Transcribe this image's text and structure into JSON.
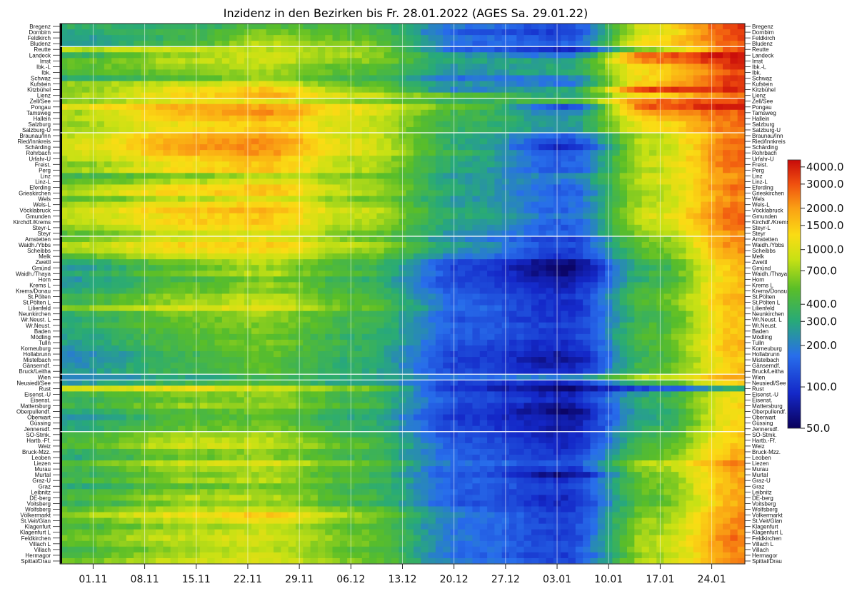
{
  "chart_data": {
    "type": "heatmap",
    "title": "Inzidenz in den Bezirken bis Fr. 28.01.2022 (AGES Sa. 29.01.22)",
    "colorscale": "log",
    "color_range": [
      50,
      4500
    ],
    "rows": [
      "Bregenz",
      "Dornbirn",
      "Feldkirch",
      "Bludenz",
      "Reutte",
      "Landeck",
      "Imst",
      "Ibk.-L",
      "Ibk.",
      "Schwaz",
      "Kufstein",
      "Kitzbühel",
      "Lienz",
      "Zell/See",
      "Pongau",
      "Tamsweg",
      "Hallein",
      "Salzburg",
      "Salzburg-U",
      "Braunau/Inn",
      "Ried/Innkreis",
      "Schärding",
      "Rohrbach",
      "Urfahr-U",
      "Freist.",
      "Perg",
      "Linz",
      "Linz-L",
      "Eferding",
      "Grieskirchen",
      "Wels",
      "Wels-L",
      "Vöcklabruck",
      "Gmunden",
      "Kirchdf./Krems",
      "Steyr-L",
      "Steyr",
      "Amstetten",
      "Waidh./Ybbs",
      "Scheibbs",
      "Melk",
      "Zwettl",
      "Gmünd",
      "Waidh./Thaya",
      "Horn",
      "Krems L",
      "Krems/Donau",
      "St.Pölten",
      "St.Pölten L",
      "Lilienfeld",
      "Neunkirchen",
      "Wr.Neust. L",
      "Wr.Neust.",
      "Baden",
      "Mödling",
      "Tulln",
      "Korneuburg",
      "Hollabrunn",
      "Mistelbach",
      "Gänserndf.",
      "Bruck/Leitha",
      "Wien",
      "Neusiedl/See",
      "Rust",
      "Eisenst.-U",
      "Eisenst.",
      "Mattersburg",
      "Oberpullendf.",
      "Oberwart",
      "Güssing",
      "Jennersdf.",
      "SO-Stmk.",
      "Hartb.-Ff.",
      "Weiz",
      "Bruck-Mzz.",
      "Leoben",
      "Liezen",
      "Murau",
      "Murtal",
      "Graz-U",
      "Graz",
      "Leibnitz",
      "DE-berg",
      "Voitsberg",
      "Wolfsberg",
      "Völkermarkt",
      "St.Veit/Glan",
      "Klagenfurt",
      "Klagenfurt L",
      "Feldkirchen",
      "Villach L",
      "Villach",
      "Hermagor",
      "Spittal/Drau"
    ],
    "x_start": "2021-10-28",
    "x_end": "2022-01-28",
    "x_ticks": [
      "01.11",
      "08.11",
      "15.11",
      "22.11",
      "29.11",
      "06.12",
      "13.12",
      "20.12",
      "27.12",
      "03.01",
      "10.01",
      "17.01",
      "24.01"
    ],
    "colorbar_ticks": [
      {
        "value": 4000,
        "label": "4000.0"
      },
      {
        "value": 3000,
        "label": "3000.0"
      },
      {
        "value": 2000,
        "label": "2000.0"
      },
      {
        "value": 1500,
        "label": "1500.0"
      },
      {
        "value": 1000,
        "label": "1000.0"
      },
      {
        "value": 700,
        "label": "700.0"
      },
      {
        "value": 400,
        "label": "400.0"
      },
      {
        "value": 300,
        "label": "300.0"
      },
      {
        "value": 200,
        "label": "200.0"
      },
      {
        "value": 100,
        "label": "100.0"
      },
      {
        "value": 50,
        "label": "50.0"
      }
    ],
    "region_separators_after_row": [
      "Bludenz",
      "Lienz",
      "Salzburg-U",
      "Steyr",
      "Bruck/Leitha",
      "Wien",
      "Jennersdf.",
      "Spittal/Drau"
    ],
    "profiles": {
      "Bregenz": [
        350,
        330,
        480,
        420,
        180,
        120,
        1100,
        3600
      ],
      "Dornbirn": [
        300,
        420,
        620,
        480,
        140,
        110,
        1000,
        3300
      ],
      "Feldkirch": [
        260,
        380,
        700,
        520,
        170,
        130,
        1200,
        3100
      ],
      "Bludenz": [
        250,
        460,
        820,
        600,
        160,
        150,
        1300,
        2900
      ],
      "Reutte": [
        800,
        900,
        800,
        700,
        150,
        90,
        700,
        3000
      ],
      "Landeck": [
        350,
        700,
        900,
        700,
        250,
        180,
        2800,
        4300
      ],
      "Imst": [
        500,
        800,
        900,
        650,
        280,
        300,
        2400,
        4000
      ],
      "Ibk.-L": [
        500,
        700,
        800,
        500,
        250,
        300,
        1500,
        3500
      ],
      "Ibk.": [
        450,
        600,
        700,
        500,
        240,
        300,
        1300,
        3000
      ],
      "Schwaz": [
        300,
        500,
        700,
        400,
        170,
        200,
        1400,
        3600
      ],
      "Kufstein": [
        700,
        900,
        1000,
        500,
        250,
        180,
        1600,
        3600
      ],
      "Kitzbühel": [
        600,
        1200,
        1500,
        700,
        200,
        300,
        3500,
        3800
      ],
      "Lienz": [
        700,
        1300,
        1800,
        900,
        500,
        300,
        1400,
        2500
      ],
      "Zell/See": [
        600,
        1100,
        1100,
        650,
        350,
        450,
        2600,
        3200
      ],
      "Pongau": [
        1100,
        1800,
        1900,
        1100,
        550,
        120,
        3000,
        4000
      ],
      "Tamsweg": [
        700,
        1800,
        2200,
        1100,
        400,
        200,
        2100,
        2800
      ],
      "Hallein": [
        800,
        1500,
        1800,
        900,
        400,
        250,
        1500,
        2600
      ],
      "Salzburg": [
        700,
        1200,
        1500,
        900,
        350,
        250,
        1200,
        2600
      ],
      "Salzburg-U": [
        700,
        1300,
        1600,
        900,
        350,
        250,
        1300,
        2700
      ],
      "Braunau/Inn": [
        800,
        1800,
        2000,
        900,
        300,
        150,
        800,
        2200
      ],
      "Ried/Innkreis": [
        900,
        1900,
        2300,
        1000,
        300,
        120,
        900,
        2500
      ],
      "Schärding": [
        1000,
        2000,
        2200,
        1000,
        300,
        90,
        800,
        2600
      ],
      "Rohrbach": [
        900,
        1800,
        2100,
        1000,
        350,
        130,
        800,
        2700
      ],
      "Urfahr-U": [
        800,
        1400,
        1600,
        800,
        300,
        150,
        900,
        2800
      ],
      "Freist.": [
        600,
        1200,
        1500,
        800,
        300,
        150,
        900,
        2700
      ],
      "Perg": [
        700,
        1300,
        1600,
        800,
        280,
        140,
        800,
        2600
      ],
      "Linz": [
        400,
        600,
        800,
        600,
        250,
        200,
        900,
        2200
      ],
      "Linz-L": [
        500,
        800,
        1100,
        700,
        260,
        180,
        900,
        2500
      ],
      "Eferding": [
        700,
        1300,
        1500,
        800,
        280,
        150,
        800,
        2600
      ],
      "Grieskirchen": [
        800,
        1400,
        1500,
        800,
        280,
        140,
        800,
        2400
      ],
      "Wels": [
        500,
        800,
        1000,
        600,
        250,
        170,
        800,
        2300
      ],
      "Wels-L": [
        700,
        1200,
        1400,
        750,
        270,
        160,
        800,
        2500
      ],
      "Vöcklabruck": [
        900,
        1600,
        1700,
        900,
        300,
        150,
        900,
        2700
      ],
      "Gmunden": [
        800,
        1300,
        1500,
        800,
        300,
        180,
        1000,
        2700
      ],
      "Kirchdf./Krems": [
        800,
        1400,
        1500,
        800,
        280,
        150,
        900,
        2600
      ],
      "Steyr-L": [
        700,
        1200,
        1300,
        700,
        250,
        140,
        800,
        2500
      ],
      "Steyr": [
        500,
        900,
        1000,
        600,
        230,
        150,
        700,
        2200
      ],
      "Amstetten": [
        600,
        1000,
        1100,
        600,
        200,
        110,
        600,
        2200
      ],
      "Waidh./Ybbs": [
        800,
        1400,
        1500,
        800,
        250,
        120,
        600,
        2300
      ],
      "Scheibbs": [
        700,
        1200,
        1300,
        700,
        220,
        110,
        500,
        2100
      ],
      "Melk": [
        500,
        900,
        1000,
        550,
        180,
        100,
        500,
        2000
      ],
      "Zwettl": [
        300,
        600,
        800,
        450,
        120,
        60,
        400,
        1700
      ],
      "Gmünd": [
        250,
        500,
        700,
        400,
        110,
        55,
        350,
        1600
      ],
      "Waidh./Thaya": [
        300,
        600,
        800,
        450,
        120,
        58,
        400,
        1700
      ],
      "Horn": [
        250,
        450,
        600,
        350,
        110,
        70,
        350,
        1500
      ],
      "Krems L": [
        250,
        500,
        700,
        400,
        120,
        80,
        400,
        1700
      ],
      "Krems/Donau": [
        300,
        550,
        650,
        400,
        130,
        90,
        450,
        1600
      ],
      "St.Pölten": [
        400,
        700,
        800,
        450,
        150,
        100,
        500,
        1800
      ],
      "St.Pölten L": [
        400,
        700,
        850,
        500,
        150,
        90,
        500,
        1900
      ],
      "Lilienfeld": [
        600,
        1000,
        1000,
        550,
        170,
        90,
        450,
        1700
      ],
      "Neunkirchen": [
        350,
        600,
        700,
        400,
        140,
        100,
        400,
        1600
      ],
      "Wr.Neust. L": [
        300,
        550,
        650,
        400,
        130,
        100,
        400,
        1600
      ],
      "Wr.Neust.": [
        350,
        550,
        600,
        400,
        150,
        110,
        450,
        1500
      ],
      "Baden": [
        300,
        500,
        600,
        380,
        140,
        100,
        450,
        1600
      ],
      "Mödling": [
        280,
        450,
        550,
        350,
        140,
        110,
        500,
        1600
      ],
      "Tulln": [
        280,
        480,
        600,
        380,
        130,
        90,
        450,
        1700
      ],
      "Korneuburg": [
        250,
        450,
        550,
        350,
        120,
        90,
        450,
        1700
      ],
      "Hollabrunn": [
        200,
        400,
        550,
        350,
        110,
        75,
        400,
        1600
      ],
      "Mistelbach": [
        220,
        400,
        500,
        320,
        110,
        70,
        400,
        1500
      ],
      "Gänserndf.": [
        230,
        400,
        500,
        320,
        110,
        80,
        450,
        1600
      ],
      "Bruck/Leitha": [
        250,
        400,
        500,
        320,
        120,
        90,
        450,
        1600
      ],
      "Wien": [
        200,
        300,
        400,
        300,
        170,
        200,
        800,
        2000
      ],
      "Neusiedl/See": [
        250,
        400,
        450,
        280,
        110,
        90,
        400,
        1500
      ],
      "Rust": [
        900,
        1100,
        900,
        600,
        90,
        60,
        120,
        350
      ],
      "Eisenst.-U": [
        400,
        600,
        700,
        400,
        120,
        80,
        300,
        1200
      ],
      "Eisenst.": [
        350,
        550,
        650,
        400,
        130,
        90,
        350,
        1200
      ],
      "Mattersburg": [
        400,
        700,
        700,
        450,
        110,
        70,
        350,
        1300
      ],
      "Oberpullendf.": [
        300,
        500,
        550,
        350,
        100,
        60,
        300,
        1200
      ],
      "Oberwart": [
        250,
        450,
        500,
        300,
        100,
        70,
        300,
        1300
      ],
      "Güssing": [
        300,
        500,
        550,
        350,
        110,
        75,
        300,
        1300
      ],
      "Jennersdf.": [
        300,
        550,
        600,
        350,
        110,
        70,
        350,
        1400
      ],
      "SO-Stmk.": [
        400,
        700,
        700,
        400,
        120,
        80,
        400,
        1500
      ],
      "Hartb.-Ff.": [
        450,
        800,
        800,
        450,
        130,
        85,
        400,
        1500
      ],
      "Weiz": [
        500,
        900,
        900,
        500,
        140,
        90,
        450,
        1600
      ],
      "Bruck-Mzz.": [
        350,
        600,
        650,
        400,
        140,
        100,
        500,
        1700
      ],
      "Leoben": [
        300,
        550,
        650,
        400,
        140,
        110,
        550,
        1800
      ],
      "Liezen": [
        500,
        900,
        1000,
        550,
        170,
        130,
        800,
        2400
      ],
      "Murau": [
        400,
        700,
        750,
        450,
        140,
        100,
        700,
        2000
      ],
      "Murtal": [
        350,
        600,
        700,
        400,
        130,
        60,
        600,
        1900
      ],
      "Graz-U": [
        400,
        700,
        800,
        450,
        150,
        100,
        550,
        1900
      ],
      "Graz": [
        300,
        500,
        600,
        380,
        150,
        110,
        550,
        1800
      ],
      "Leibnitz": [
        400,
        650,
        700,
        400,
        140,
        100,
        550,
        1900
      ],
      "DE-berg": [
        450,
        800,
        800,
        450,
        140,
        90,
        500,
        1800
      ],
      "Voitsberg": [
        350,
        650,
        700,
        400,
        130,
        90,
        500,
        1800
      ],
      "Wolfsberg": [
        500,
        800,
        900,
        550,
        160,
        100,
        600,
        2000
      ],
      "Völkermarkt": [
        700,
        1200,
        1500,
        700,
        200,
        110,
        600,
        2100
      ],
      "St.Veit/Glan": [
        500,
        900,
        1100,
        600,
        180,
        110,
        700,
        2200
      ],
      "Klagenfurt": [
        400,
        700,
        800,
        500,
        170,
        120,
        700,
        2200
      ],
      "Klagenfurt L": [
        500,
        800,
        900,
        550,
        170,
        110,
        700,
        2300
      ],
      "Feldkirchen": [
        600,
        900,
        1000,
        600,
        180,
        110,
        800,
        2600
      ],
      "Villach L": [
        500,
        800,
        900,
        550,
        170,
        120,
        800,
        2400
      ],
      "Villach": [
        400,
        700,
        800,
        500,
        170,
        130,
        800,
        2300
      ],
      "Hermagor": [
        450,
        800,
        900,
        550,
        160,
        110,
        700,
        2200
      ],
      "Spittal/Drau": [
        550,
        900,
        1000,
        600,
        180,
        120,
        800,
        2400
      ]
    }
  }
}
